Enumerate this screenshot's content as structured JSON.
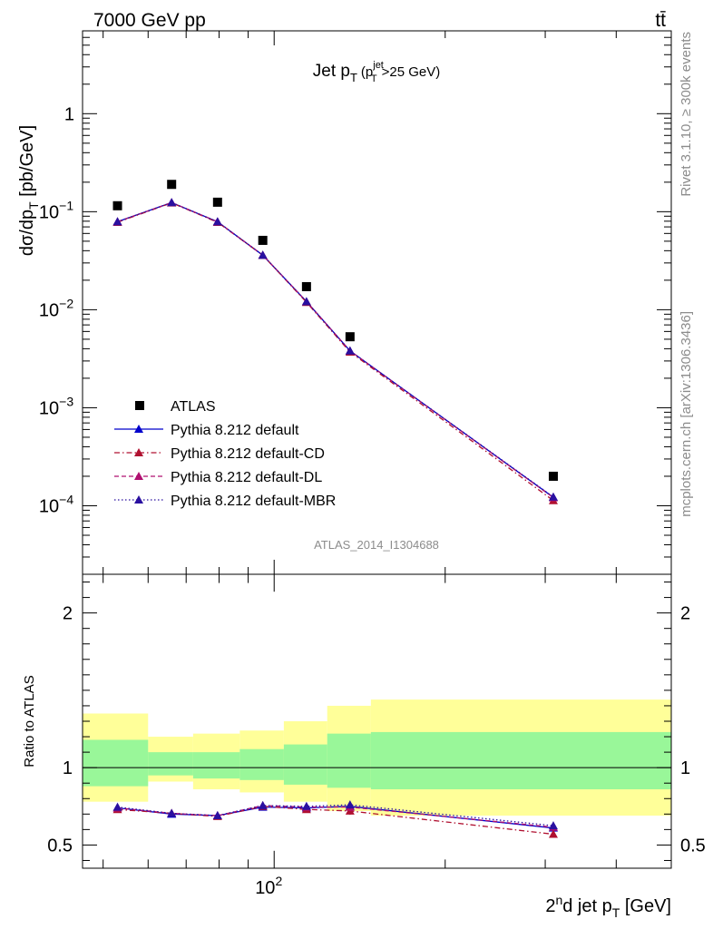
{
  "header": {
    "left": "7000 GeV pp",
    "right": "tt̄"
  },
  "side_labels": {
    "rivet": "Rivet 3.1.10, ≥ 300k events",
    "mcplots": "mcplots.cern.ch [arXiv:1306.3436]"
  },
  "chart_data": [
    {
      "type": "scatter",
      "panel": "main",
      "title": "Jet p_T (p_T^jet>25 GeV)",
      "title_parts": {
        "main": "Jet p",
        "sub": "T",
        "cut_open": "(p",
        "cut_sup": "jet",
        "cut_sub": "T",
        "cut_close": ">25 GeV)"
      },
      "ylabel": "dσ/dp_T [pb/GeV]",
      "ylabel_parts": {
        "main": "dσ/dp",
        "sub": "T",
        "unit": " [pb/GeV]"
      },
      "xscale": "log",
      "yscale": "log",
      "xlim": [
        46,
        500
      ],
      "ylim": [
        2e-05,
        7
      ],
      "y_ticks": [
        {
          "value": 1,
          "base": "1",
          "exp": ""
        },
        {
          "value": 0.1,
          "base": "10",
          "exp": "−1"
        },
        {
          "value": 0.01,
          "base": "10",
          "exp": "−2"
        },
        {
          "value": 0.001,
          "base": "10",
          "exp": "−3"
        },
        {
          "value": 0.0001,
          "base": "10",
          "exp": "−4"
        }
      ],
      "watermark": "ATLAS_2014_I1304688",
      "x_bins": [
        [
          46,
          60
        ],
        [
          60,
          72
        ],
        [
          72,
          87
        ],
        [
          87,
          104
        ],
        [
          104,
          124
        ],
        [
          124,
          148
        ],
        [
          148,
          500
        ]
      ],
      "x_points": [
        53,
        66,
        79.5,
        95.5,
        114,
        136,
        310
      ],
      "series": [
        {
          "name": "ATLAS",
          "style": "data",
          "color": "#000000",
          "values": [
            0.115,
            0.19,
            0.125,
            0.051,
            0.0172,
            0.0053,
            0.0002
          ]
        },
        {
          "name": "Pythia 8.212 default",
          "style": "solid",
          "color": "#0000cc",
          "values": [
            0.079,
            0.124,
            0.079,
            0.036,
            0.0121,
            0.0038,
            0.000122
          ]
        },
        {
          "name": "Pythia 8.212 default-CD",
          "style": "dashdot",
          "color": "#b01030",
          "values": [
            0.078,
            0.123,
            0.078,
            0.036,
            0.0119,
            0.0037,
            0.000113
          ]
        },
        {
          "name": "Pythia 8.212 default-DL",
          "style": "dashed",
          "color": "#b01070",
          "values": [
            0.079,
            0.124,
            0.079,
            0.036,
            0.0121,
            0.0038,
            0.000121
          ]
        },
        {
          "name": "Pythia 8.212 default-MBR",
          "style": "dotted",
          "color": "#2a10a0",
          "values": [
            0.079,
            0.124,
            0.079,
            0.036,
            0.0121,
            0.0038,
            0.000123
          ]
        }
      ]
    },
    {
      "type": "line",
      "panel": "ratio",
      "ylabel": "Ratio to ATLAS",
      "ylim": [
        0.35,
        2.25
      ],
      "y_ticks": [
        {
          "value": 0.5,
          "label": "0.5"
        },
        {
          "value": 1,
          "label": "1"
        },
        {
          "value": 2,
          "label": "2"
        }
      ],
      "xlabel": "2nd jet p_T [GeV]",
      "xlabel_parts": {
        "a": "2",
        "sup": "n",
        "b": "d jet p",
        "sub": "T",
        "unit": " [GeV]"
      },
      "x_tick": {
        "value": 100,
        "base": "10",
        "exp": "2"
      },
      "bands": {
        "yellow": [
          [
            0.78,
            1.35
          ],
          [
            0.91,
            1.2
          ],
          [
            0.86,
            1.22
          ],
          [
            0.84,
            1.24
          ],
          [
            0.78,
            1.3
          ],
          [
            0.72,
            1.4
          ],
          [
            0.69,
            1.44
          ]
        ],
        "green": [
          [
            0.88,
            1.18
          ],
          [
            0.95,
            1.1
          ],
          [
            0.93,
            1.1
          ],
          [
            0.92,
            1.12
          ],
          [
            0.89,
            1.15
          ],
          [
            0.87,
            1.22
          ],
          [
            0.86,
            1.23
          ]
        ]
      },
      "series": [
        {
          "name": "Pythia 8.212 default",
          "values": [
            0.74,
            0.7,
            0.69,
            0.745,
            0.74,
            0.75,
            0.61
          ]
        },
        {
          "name": "Pythia 8.212 default-CD",
          "values": [
            0.73,
            0.705,
            0.685,
            0.75,
            0.73,
            0.72,
            0.57
          ]
        },
        {
          "name": "Pythia 8.212 default-DL",
          "values": [
            0.74,
            0.705,
            0.69,
            0.755,
            0.745,
            0.745,
            0.615
          ]
        },
        {
          "name": "Pythia 8.212 default-MBR",
          "values": [
            0.745,
            0.705,
            0.69,
            0.755,
            0.75,
            0.76,
            0.625
          ]
        }
      ],
      "errors": [
        0.01,
        0.01,
        0.01,
        0.012,
        0.014,
        0.025,
        0.02
      ]
    }
  ]
}
